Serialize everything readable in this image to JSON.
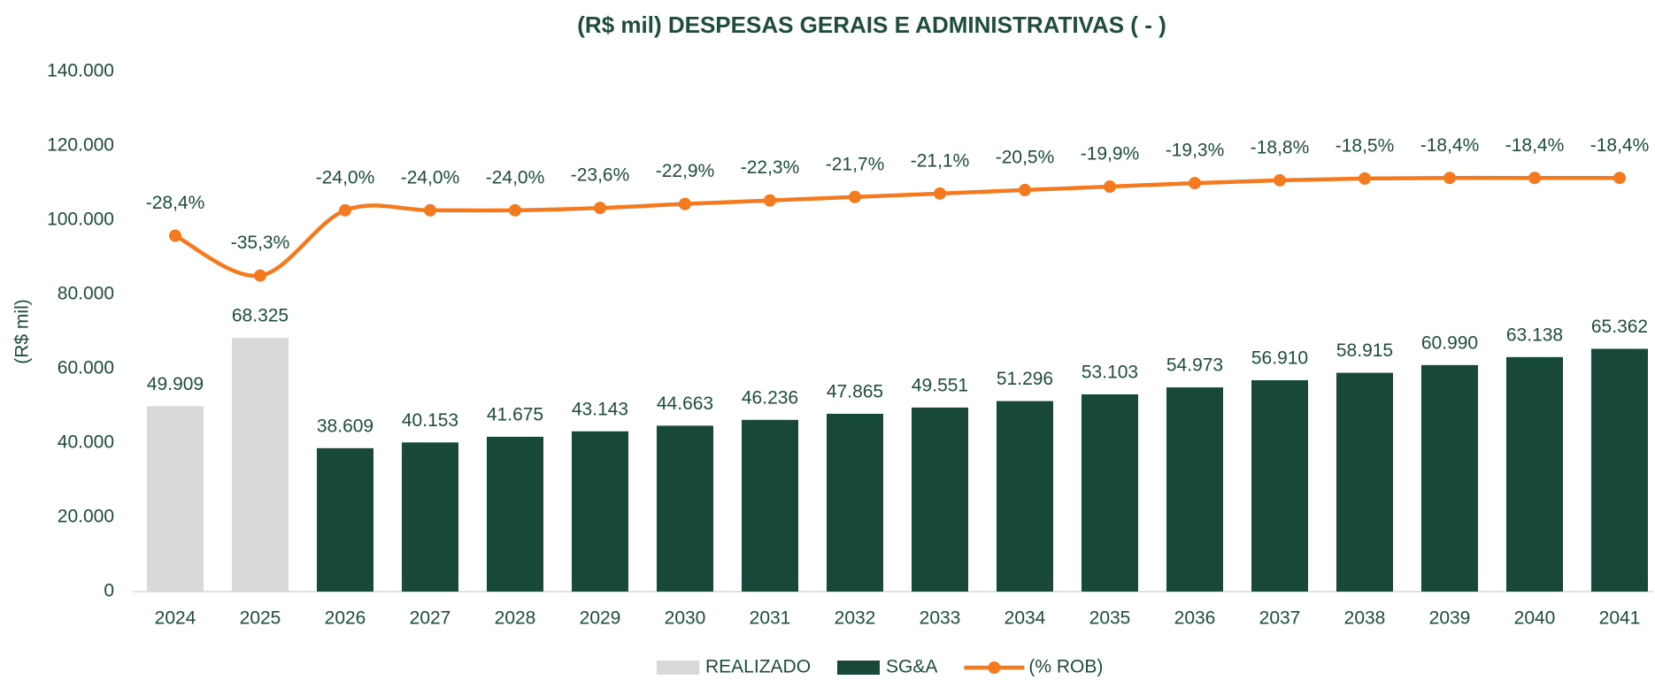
{
  "chart_data": {
    "type": "bar",
    "title": "(R$ mil) DESPESAS GERAIS E ADMINISTRATIVAS ( - )",
    "y_label": "(R$ mil)",
    "categories": [
      "2024",
      "2025",
      "2026",
      "2027",
      "2028",
      "2029",
      "2030",
      "2031",
      "2032",
      "2033",
      "2034",
      "2035",
      "2036",
      "2037",
      "2038",
      "2039",
      "2040",
      "2041"
    ],
    "series": [
      {
        "name": "REALIZADO",
        "color": "#d9d9d9",
        "values": [
          49909,
          68325,
          null,
          null,
          null,
          null,
          null,
          null,
          null,
          null,
          null,
          null,
          null,
          null,
          null,
          null,
          null,
          null
        ],
        "value_labels": [
          "49.909",
          "68.325",
          null,
          null,
          null,
          null,
          null,
          null,
          null,
          null,
          null,
          null,
          null,
          null,
          null,
          null,
          null,
          null
        ]
      },
      {
        "name": "SG&A",
        "color": "#18483a",
        "values": [
          null,
          null,
          38609,
          40153,
          41675,
          43143,
          44663,
          46236,
          47865,
          49551,
          51296,
          53103,
          54973,
          56910,
          58915,
          60990,
          63138,
          65362
        ],
        "value_labels": [
          null,
          null,
          "38.609",
          "40.153",
          "41.675",
          "43.143",
          "44.663",
          "46.236",
          "47.865",
          "49.551",
          "51.296",
          "53.103",
          "54.973",
          "56.910",
          "58.915",
          "60.990",
          "63.138",
          "65.362"
        ]
      },
      {
        "name": "(% ROB)",
        "color": "#f47a20",
        "type": "line",
        "axis": "y2",
        "values": [
          -28.4,
          -35.3,
          -24.0,
          -24.0,
          -24.0,
          -23.6,
          -22.9,
          -22.3,
          -21.7,
          -21.1,
          -20.5,
          -19.9,
          -19.3,
          -18.8,
          -18.5,
          -18.4,
          -18.4,
          -18.4
        ],
        "value_labels": [
          "-28,4%",
          "-35,3%",
          "-24,0%",
          "-24,0%",
          "-24,0%",
          "-23,6%",
          "-22,9%",
          "-22,3%",
          "-21,7%",
          "-21,1%",
          "-20,5%",
          "-19,9%",
          "-19,3%",
          "-18,8%",
          "-18,5%",
          "-18,4%",
          "-18,4%",
          "-18,4%"
        ]
      }
    ],
    "ylim": [
      0,
      140000
    ],
    "yticks": [
      0,
      {
        "value": 20000,
        "label": "20.000"
      },
      {
        "value": 40000,
        "label": "40.000"
      },
      {
        "value": 60000,
        "label": "60.000"
      },
      {
        "value": 80000,
        "label": "80.000"
      },
      {
        "value": 100000,
        "label": "100.000"
      },
      {
        "value": 120000,
        "label": "120.000"
      },
      {
        "value": 140000,
        "label": "140.000"
      }
    ],
    "y2lim": [
      -90,
      0
    ],
    "grid": false,
    "legend": "bottom"
  }
}
